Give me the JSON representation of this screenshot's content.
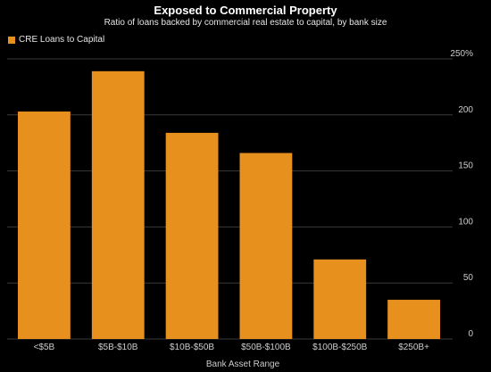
{
  "chart_data": {
    "type": "bar",
    "title": "Exposed to Commercial Property",
    "subtitle": "Ratio of loans backed by commercial real estate to capital, by bank size",
    "xlabel": "Bank Asset Range",
    "ylabel": "",
    "categories": [
      "<$5B",
      "$5B-$10B",
      "$10B-$50B",
      "$50B-$100B",
      "$100B-$250B",
      "$250B+"
    ],
    "series": [
      {
        "name": "CRE Loans to Capital",
        "values": [
          203,
          239,
          184,
          166,
          71,
          35
        ]
      }
    ],
    "ylim": [
      0,
      250
    ],
    "yticks": [
      0,
      50,
      100,
      150,
      200,
      250
    ],
    "ytick_labels": [
      "0",
      "50",
      "100",
      "150",
      "200",
      "250%"
    ],
    "y_axis_position": "right",
    "grid": true,
    "legend_position": "top-left",
    "bar_color": "#e8901e",
    "grid_color": "#3a3a3a",
    "background": "#000000"
  }
}
